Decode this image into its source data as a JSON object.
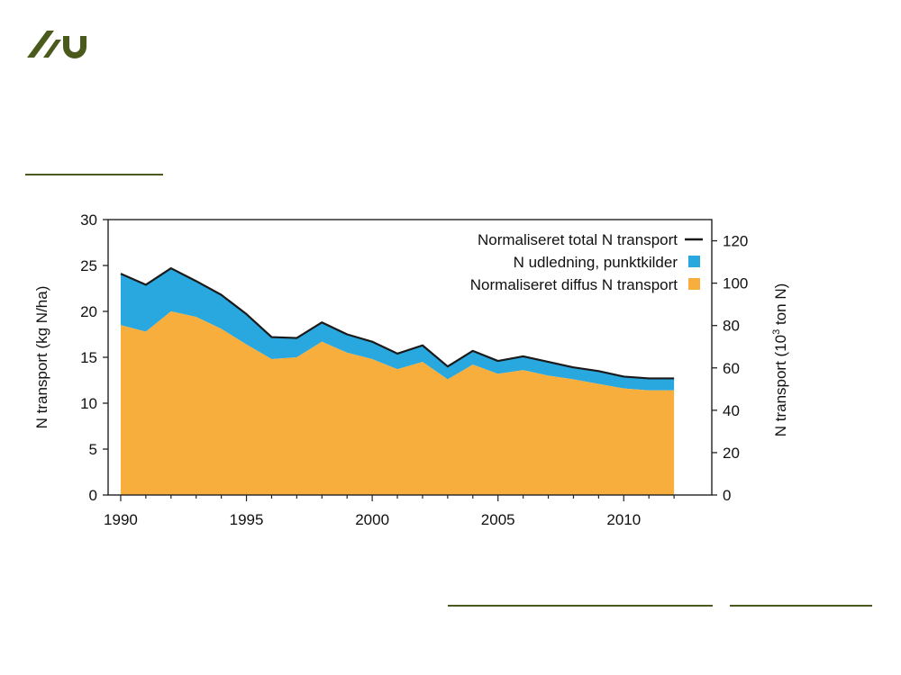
{
  "colors": {
    "brand": "#4a5a1c",
    "diffus": "#f8ae3c",
    "punkt": "#29a8e0",
    "total": "#1a1a1a",
    "axis": "#222222"
  },
  "logo": {
    "icon": "aarhus-university-logo-icon"
  },
  "chart_data": {
    "type": "area",
    "x": [
      1990,
      1991,
      1992,
      1993,
      1994,
      1995,
      1996,
      1997,
      1998,
      1999,
      2000,
      2001,
      2002,
      2003,
      2004,
      2005,
      2006,
      2007,
      2008,
      2009,
      2010,
      2011,
      2012
    ],
    "series": [
      {
        "name": "Normaliseret diffus N transport",
        "kind": "area",
        "values": [
          18.5,
          17.8,
          20.0,
          19.4,
          18.1,
          16.4,
          14.8,
          15.0,
          16.7,
          15.5,
          14.8,
          13.7,
          14.5,
          12.6,
          14.2,
          13.2,
          13.6,
          13.0,
          12.6,
          12.1,
          11.6,
          11.4,
          11.4
        ]
      },
      {
        "name": "N udledning, punktkilder",
        "kind": "area",
        "values": [
          5.6,
          5.1,
          4.7,
          3.9,
          3.7,
          3.3,
          2.4,
          2.1,
          2.1,
          2.0,
          1.9,
          1.7,
          1.8,
          1.4,
          1.5,
          1.4,
          1.5,
          1.5,
          1.3,
          1.4,
          1.3,
          1.3,
          1.3
        ]
      },
      {
        "name": "Normaliseret total N transport",
        "kind": "line",
        "values": [
          24.1,
          22.9,
          24.7,
          23.3,
          21.8,
          19.7,
          17.2,
          17.1,
          18.8,
          17.5,
          16.7,
          15.4,
          16.3,
          14.0,
          15.7,
          14.6,
          15.1,
          14.5,
          13.9,
          13.5,
          12.9,
          12.7,
          12.7
        ]
      }
    ],
    "legend": [
      {
        "label": "Normaliseret total N transport",
        "swatch": "line",
        "color": "#1a1a1a"
      },
      {
        "label": "N udledning, punktkilder",
        "swatch": "box",
        "color": "#29a8e0"
      },
      {
        "label": "Normaliseret diffus N transport",
        "swatch": "box",
        "color": "#f8ae3c"
      }
    ],
    "legend_position": "top-right",
    "xlim": [
      1989.5,
      2013.5
    ],
    "xticks": [
      1990,
      1995,
      2000,
      2005,
      2010
    ],
    "ylim": [
      0,
      30
    ],
    "yticks": [
      0,
      5,
      10,
      15,
      20,
      25,
      30
    ],
    "ylabel": "N transport (kg N/ha)",
    "y2lim": [
      0,
      130
    ],
    "y2ticks": [
      0,
      20,
      40,
      60,
      80,
      100,
      120
    ],
    "y2label_pre": "N transport (10",
    "y2label_sup": "3",
    "y2label_post": " ton N)"
  }
}
